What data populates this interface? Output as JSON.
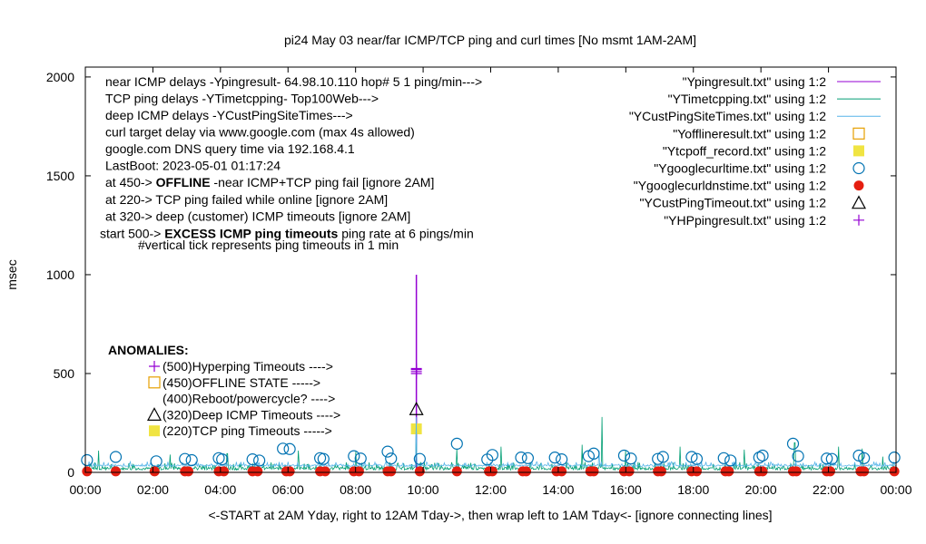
{
  "chart_data": {
    "type": "line",
    "title": "pi24 May 03  near/far ICMP/TCP ping and curl times [No msmt 1AM-2AM]",
    "xlabel": "<-START at 2AM Yday, right to 12AM Tday->, then wrap left to 1AM Tday<- [ignore connecting lines]",
    "ylabel": "msec",
    "xlim": [
      0,
      24
    ],
    "ylim": [
      0,
      2050
    ],
    "x_ticks": [
      "00:00",
      "02:00",
      "04:00",
      "06:00",
      "08:00",
      "10:00",
      "12:00",
      "14:00",
      "16:00",
      "18:00",
      "20:00",
      "22:00",
      "00:00"
    ],
    "y_ticks": [
      "0",
      "500",
      "1000",
      "1500",
      "2000"
    ],
    "grid": false,
    "legend_position": "top-right",
    "legend": [
      {
        "label": "\"Ypingresult.txt\" using 1:2",
        "type": "line",
        "color": "#9400d3"
      },
      {
        "label": "\"YTimetcpping.txt\" using 1:2",
        "type": "line",
        "color": "#009e73"
      },
      {
        "label": "\"YCustPingSiteTimes.txt\" using 1:2",
        "type": "line",
        "color": "#56b4e9"
      },
      {
        "label": "\"Yofflineresult.txt\" using 1:2",
        "type": "open-square",
        "color": "#e69f00"
      },
      {
        "label": "\"Ytcpoff_record.txt\" using 1:2",
        "type": "filled-square",
        "color": "#f0e442"
      },
      {
        "label": "\"Ygooglecurltime.txt\" using 1:2",
        "type": "open-circle",
        "color": "#0072b2"
      },
      {
        "label": "\"Ygooglecurldnstime.txt\" using 1:2",
        "type": "filled-circle",
        "color": "#e51e10"
      },
      {
        "label": "\"YCustPingTimeout.txt\" using 1:2",
        "type": "open-triangle",
        "color": "#000000"
      },
      {
        "label": "\"YHPpingresult.txt\" using 1:2",
        "type": "plus",
        "color": "#9400d3"
      }
    ],
    "info_lines": [
      "near ICMP delays -Ypingresult- 64.98.10.110 hop# 5 1 ping/min--->",
      "TCP ping delays -YTimetcpping- Top100Web--->",
      "deep ICMP delays -YCustPingSiteTimes--->",
      "curl target delay via www.google.com (max 4s allowed)",
      "google.com DNS query time via 192.168.4.1",
      "LastBoot: 2023-05-01 01:17:24"
    ],
    "status_lines": [
      {
        "prefix": "at 450-> ",
        "bold": "OFFLINE",
        "suffix": " -near ICMP+TCP ping fail [ignore 2AM]"
      },
      {
        "prefix": "at 220-> TCP ping failed while online [ignore 2AM]",
        "bold": "",
        "suffix": ""
      },
      {
        "prefix": "at 320-> deep (customer) ICMP timeouts [ignore 2AM]",
        "bold": "",
        "suffix": ""
      },
      {
        "prefix": "start 500-> ",
        "bold": "EXCESS ICMP ping timeouts",
        "suffix": "  ping rate at 6 pings/min"
      }
    ],
    "tick_note": "#vertical tick represents ping timeouts in 1 min",
    "anomalies_title": "ANOMALIES:",
    "anomalies": [
      {
        "symbol": "plus",
        "color": "#9400d3",
        "text": "(500)Hyperping Timeouts ---->"
      },
      {
        "symbol": "open-square",
        "color": "#e69f00",
        "text": "(450)OFFLINE STATE ----->"
      },
      {
        "symbol": "none",
        "color": "",
        "text": "(400)Reboot/powercycle? ---->"
      },
      {
        "symbol": "open-triangle",
        "color": "#000000",
        "text": "(320)Deep ICMP Timeouts ---->"
      },
      {
        "symbol": "filled-square",
        "color": "#f0e442",
        "text": "(220)TCP ping Timeouts ----->"
      }
    ],
    "series": [
      {
        "name": "Ypingresult.txt",
        "kind": "spike",
        "x": [
          9.8
        ],
        "y": [
          1000
        ],
        "baseline": 20,
        "color": "#9400d3"
      },
      {
        "name": "YHPpingresult.txt",
        "kind": "plus",
        "x": [
          9.8,
          9.8,
          9.8,
          9.8
        ],
        "y": [
          500,
          510,
          520,
          525
        ],
        "color": "#9400d3"
      },
      {
        "name": "YCustPingTimeout.txt",
        "kind": "open-triangle",
        "x": [
          9.8
        ],
        "y": [
          320
        ],
        "color": "#000000"
      },
      {
        "name": "Ytcpoff_record.txt",
        "kind": "filled-square",
        "x": [
          9.8
        ],
        "y": [
          220
        ],
        "color": "#f0e442"
      },
      {
        "name": "YTimetcpping.txt",
        "kind": "noise",
        "color": "#009e73",
        "base": 12,
        "amp": 40,
        "spikes": [
          [
            0.4,
            110
          ],
          [
            2.5,
            90
          ],
          [
            4.2,
            95
          ],
          [
            6.3,
            110
          ],
          [
            8.0,
            105
          ],
          [
            9.8,
            230
          ],
          [
            11.0,
            120
          ],
          [
            12.3,
            130
          ],
          [
            14.7,
            140
          ],
          [
            15.3,
            280
          ],
          [
            16.0,
            110
          ],
          [
            17.6,
            130
          ],
          [
            19.5,
            115
          ],
          [
            21.0,
            150
          ],
          [
            22.3,
            130
          ],
          [
            23.0,
            120
          ],
          [
            23.6,
            80
          ]
        ]
      },
      {
        "name": "YCustPingSiteTimes.txt",
        "kind": "noise",
        "color": "#56b4e9",
        "base": 30,
        "amp": 25,
        "spikes": [
          [
            9.8,
            280
          ],
          [
            15.2,
            110
          ]
        ]
      },
      {
        "name": "Ygooglecurltime.txt",
        "kind": "open-circle",
        "color": "#0072b2",
        "x": [
          0.05,
          0.9,
          2.1,
          2.95,
          3.15,
          3.95,
          4.05,
          4.95,
          5.15,
          5.85,
          6.05,
          6.95,
          7.05,
          7.95,
          8.15,
          8.95,
          9.05,
          9.9,
          11.0,
          11.9,
          12.05,
          12.9,
          13.1,
          13.9,
          14.1,
          14.9,
          15.05,
          15.95,
          16.15,
          16.95,
          17.1,
          17.95,
          18.1,
          18.9,
          19.1,
          19.95,
          20.05,
          20.95,
          21.1,
          21.95,
          22.1,
          22.9,
          23.05,
          23.95
        ],
        "y": [
          62,
          78,
          56,
          68,
          62,
          72,
          66,
          66,
          60,
          120,
          118,
          72,
          68,
          82,
          70,
          105,
          70,
          68,
          145,
          65,
          88,
          75,
          72,
          75,
          66,
          82,
          95,
          85,
          70,
          68,
          78,
          78,
          68,
          72,
          60,
          75,
          85,
          145,
          82,
          70,
          68,
          85,
          72,
          75
        ]
      },
      {
        "name": "Ygooglecurldnstime.txt",
        "kind": "filled-circle",
        "color": "#e51e10",
        "x": [
          0.05,
          0.9,
          2.05,
          2.95,
          3.05,
          3.95,
          4.1,
          4.95,
          5.1,
          5.95,
          6.05,
          6.95,
          7.1,
          7.95,
          8.1,
          8.95,
          9.05,
          9.9,
          11.0,
          11.95,
          12.05,
          12.95,
          13.05,
          13.95,
          14.1,
          14.95,
          15.05,
          15.95,
          16.1,
          16.95,
          17.05,
          17.95,
          18.1,
          18.95,
          19.05,
          19.95,
          20.05,
          20.95,
          21.05,
          21.95,
          22.05,
          22.95,
          23.05,
          23.95
        ],
        "y": [
          5,
          5,
          5,
          5,
          5,
          5,
          5,
          5,
          5,
          5,
          5,
          5,
          5,
          5,
          5,
          5,
          5,
          5,
          5,
          5,
          5,
          5,
          5,
          5,
          5,
          5,
          5,
          5,
          5,
          5,
          5,
          5,
          5,
          5,
          5,
          5,
          5,
          5,
          5,
          5,
          5,
          5,
          5,
          5
        ]
      }
    ]
  }
}
